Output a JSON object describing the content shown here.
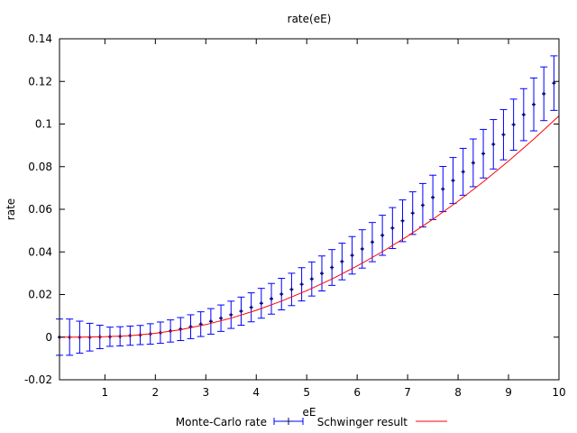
{
  "chart_data": {
    "type": "scatter",
    "title": "rate(eE)",
    "xlabel": "eE",
    "ylabel": "rate",
    "xlim": [
      0.1,
      10
    ],
    "ylim": [
      -0.02,
      0.14
    ],
    "x_ticks": [
      "1",
      "2",
      "3",
      "4",
      "5",
      "6",
      "7",
      "8",
      "9",
      "10"
    ],
    "y_ticks": [
      "-0.02",
      "0",
      "0.02",
      "0.04",
      "0.06",
      "0.08",
      "0.1",
      "0.12",
      "0.14"
    ],
    "grid": false,
    "legend_position": "bottom",
    "series": [
      {
        "name": "Monte-Carlo rate",
        "style": "points with y error bars",
        "color": "#0000ff",
        "x": [
          0.1,
          0.3,
          0.5,
          0.7,
          0.9,
          1.1,
          1.3,
          1.5,
          1.7,
          1.9,
          2.1,
          2.3,
          2.5,
          2.7,
          2.9,
          3.1,
          3.3,
          3.5,
          3.7,
          3.9,
          4.1,
          4.3,
          4.5,
          4.7,
          4.9,
          5.1,
          5.3,
          5.5,
          5.7,
          5.9,
          6.1,
          6.3,
          6.5,
          6.7,
          6.9,
          7.1,
          7.3,
          7.5,
          7.7,
          7.9,
          8.1,
          8.3,
          8.5,
          8.7,
          8.9,
          9.1,
          9.3,
          9.5,
          9.7,
          9.9
        ],
        "y": [
          0,
          0,
          0,
          0,
          0.0001,
          0.0002,
          0.0004,
          0.0007,
          0.001,
          0.0015,
          0.0021,
          0.0029,
          0.0038,
          0.0049,
          0.0061,
          0.0074,
          0.0089,
          0.0105,
          0.0122,
          0.014,
          0.0159,
          0.018,
          0.0202,
          0.0224,
          0.0248,
          0.0273,
          0.0299,
          0.0327,
          0.0355,
          0.0384,
          0.0414,
          0.0446,
          0.0478,
          0.0512,
          0.0546,
          0.0582,
          0.0619,
          0.0656,
          0.0695,
          0.0735,
          0.0776,
          0.0818,
          0.0861,
          0.0905,
          0.095,
          0.0997,
          0.1044,
          0.1092,
          0.1142,
          0.1192
        ],
        "yerr": [
          0.0085,
          0.0085,
          0.0075,
          0.0065,
          0.0055,
          0.0045,
          0.0045,
          0.0045,
          0.0045,
          0.0048,
          0.005,
          0.0052,
          0.0054,
          0.0056,
          0.0058,
          0.006,
          0.0062,
          0.0064,
          0.0066,
          0.0068,
          0.007,
          0.0072,
          0.0074,
          0.0076,
          0.0078,
          0.008,
          0.0082,
          0.0084,
          0.0086,
          0.0088,
          0.009,
          0.0092,
          0.0094,
          0.0096,
          0.0098,
          0.01,
          0.0102,
          0.0104,
          0.0106,
          0.0108,
          0.011,
          0.0112,
          0.0114,
          0.0116,
          0.0118,
          0.012,
          0.0122,
          0.0124,
          0.0126,
          0.0128
        ]
      },
      {
        "name": "Schwinger result",
        "style": "line",
        "color": "#ff0000",
        "x": [
          0.1,
          0.5,
          1,
          1.5,
          2,
          2.5,
          3,
          3.5,
          4,
          4.5,
          5,
          5.5,
          6,
          6.5,
          7,
          7.5,
          8,
          8.5,
          9,
          9.5,
          10
        ],
        "y": [
          0,
          0,
          0.0002,
          0.0007,
          0.0018,
          0.0035,
          0.0059,
          0.0089,
          0.0126,
          0.0169,
          0.0218,
          0.0273,
          0.0334,
          0.0401,
          0.0474,
          0.0553,
          0.0638,
          0.0729,
          0.0826,
          0.0929,
          0.1038
        ]
      }
    ]
  }
}
